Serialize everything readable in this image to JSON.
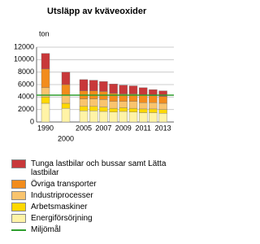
{
  "chart_data": {
    "type": "stacked-bar",
    "title": "Utsläpp av kväveoxider",
    "y_label": "ton",
    "categories": [
      "1990",
      "2000",
      "2005",
      null,
      "2007",
      null,
      "2009",
      null,
      "2011",
      null,
      "2013"
    ],
    "series": [
      {
        "name": "Energiförsörjning",
        "color": "#fff3a6",
        "values": [
          3000,
          2200,
          1800,
          1800,
          1700,
          1600,
          1700,
          1600,
          1500,
          1500,
          1400
        ]
      },
      {
        "name": "Arbetsmaskiner",
        "color": "#ffd800",
        "values": [
          1000,
          800,
          700,
          700,
          700,
          600,
          600,
          600,
          600,
          600,
          600
        ]
      },
      {
        "name": "Industriprocesser",
        "color": "#f9c46e",
        "values": [
          1500,
          1300,
          1200,
          1200,
          1200,
          1100,
          1000,
          1100,
          1000,
          1000,
          1000
        ]
      },
      {
        "name": "Övriga transporter",
        "color": "#f28c1c",
        "values": [
          3000,
          1700,
          1300,
          1300,
          1300,
          1300,
          1200,
          1200,
          1200,
          1100,
          1100
        ]
      },
      {
        "name": "Tunga lastbilar och bussar samt Lätta lastbilar",
        "color": "#c8383a",
        "values": [
          2500,
          2000,
          1800,
          1700,
          1600,
          1500,
          1400,
          1300,
          1200,
          1000,
          900
        ]
      }
    ],
    "target": {
      "name": "Miljömål",
      "value": 4300,
      "color": "#2e9e2e"
    },
    "ylim": [
      0,
      12000
    ],
    "yticks": [
      0,
      2000,
      4000,
      6000,
      8000,
      10000,
      12000
    ],
    "grid": true
  }
}
